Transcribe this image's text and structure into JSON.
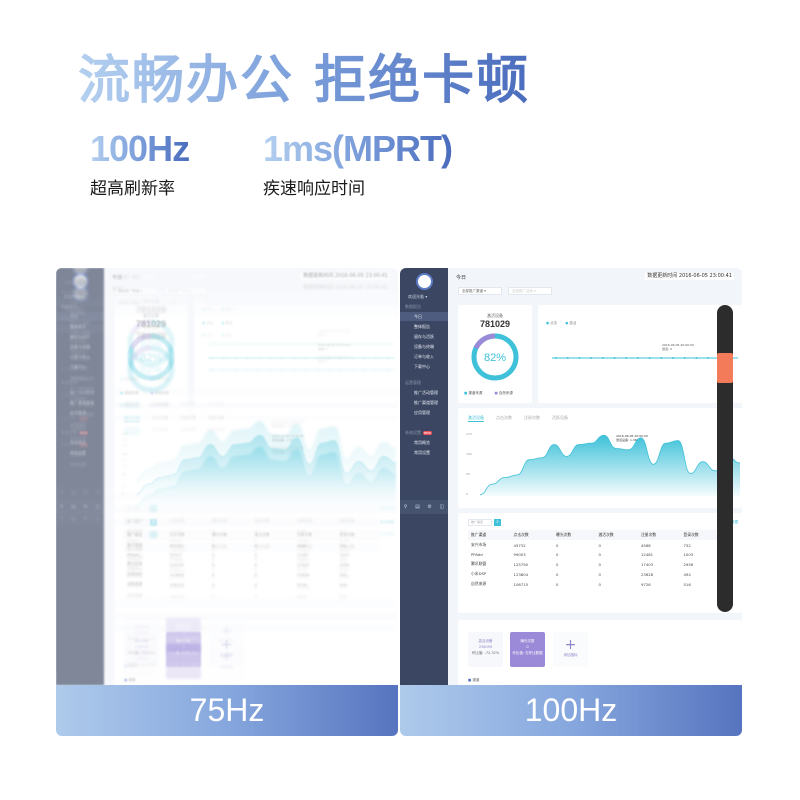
{
  "headline": "流畅办公  拒绝卡顿",
  "specs": [
    {
      "value": "100Hz",
      "label": "超高刷新率"
    },
    {
      "value": "1ms(MPRT)",
      "label": "疾速响应时间"
    }
  ],
  "panels": {
    "left_label": "75Hz",
    "right_label": "100Hz"
  },
  "colors": {
    "accent": "#3ec1d9",
    "purple": "#9b8ad8",
    "sidebar": "#3b4762",
    "scroll_thumb": "#f47b5a",
    "label_bar_end": "#5674bf"
  },
  "dashboard": {
    "user": "欢迎光临 ▾",
    "title": "今日",
    "update_time": "数据更新时间  2016-06-05  23:00:41",
    "filters": [
      "全部推广渠道  ▾",
      "全部推广活动  ▾"
    ],
    "sidebar": {
      "group1": "数据报告",
      "items1": [
        "今日",
        "整体报告",
        "留存与活跃",
        "设备与终端",
        "订单与收入",
        "下载中心"
      ],
      "group2": "运营管理",
      "items2": [
        "推广活动管理",
        "推广渠道管理",
        "应用管理"
      ],
      "group3": "系统设置",
      "group3_badge": "NEW",
      "items3": [
        "常用概览",
        "常用设置"
      ]
    },
    "activation_card": {
      "title": "激活设备",
      "value": "781029",
      "percent": "82%",
      "percent_value": 82,
      "legend": [
        "渠道来源",
        "自然来源"
      ]
    },
    "line_card": {
      "legend": [
        "点击",
        "激活"
      ],
      "tooltip": "2016-06-05 20:00:00\n激活: 0"
    },
    "area_card": {
      "tabs": [
        "激活设备",
        "点击次数",
        "注册次数",
        "活跃设备"
      ],
      "y_ticks": [
        "175",
        "100",
        "50",
        "0"
      ],
      "tooltip": "2016-06-05 20:00:00\n激活设备: 1,362",
      "values": [
        2,
        18,
        28,
        32,
        55,
        58,
        78,
        60,
        78,
        80,
        92,
        72,
        70,
        88,
        48,
        80,
        84,
        34,
        52,
        38,
        60,
        50
      ]
    },
    "table": {
      "search_placeholder": "推广渠道",
      "export": "导出数据",
      "headers": [
        "推广渠道",
        "点击次数",
        "曝光次数",
        "激活次数",
        "注册次数",
        "登录次数"
      ],
      "rows": [
        [
          "安兴市场",
          "45732",
          "0",
          "0",
          "4568",
          "732"
        ],
        [
          "PPAdd",
          "99003",
          "0",
          "0",
          "12481",
          "1003"
        ],
        [
          "腾讯联盟",
          "125790",
          "0",
          "0",
          "17403",
          "2956"
        ],
        [
          "小米DSP",
          "123804",
          "0",
          "0",
          "23628",
          "494"
        ],
        [
          "自然来源",
          "106715",
          "0",
          "0",
          "9726",
          "516"
        ]
      ]
    },
    "mini_cards": [
      {
        "title": "激活设备",
        "value": "236059",
        "note": "环比值: -72.32%"
      },
      {
        "title": "曝光次数",
        "value": "0",
        "note": "环比值: 无环比数据"
      },
      {
        "title": "添加指标",
        "value": "+",
        "note": ""
      }
    ],
    "footer_legend": "渠道"
  }
}
